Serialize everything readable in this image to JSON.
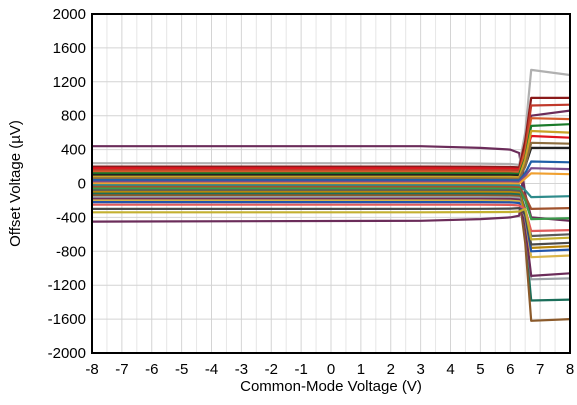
{
  "chart_data": {
    "type": "line",
    "title": "",
    "xlabel": "Common-Mode Voltage (V)",
    "ylabel": "Offset Voltage (µV)",
    "xlim": [
      -8,
      8
    ],
    "ylim": [
      -2000,
      2000
    ],
    "x_ticks": [
      -8,
      -7,
      -6,
      -5,
      -4,
      -3,
      -2,
      -1,
      0,
      1,
      2,
      3,
      4,
      5,
      6,
      7,
      8
    ],
    "y_ticks": [
      -2000,
      -1600,
      -1200,
      -800,
      -400,
      0,
      400,
      800,
      1200,
      1600,
      2000
    ],
    "x_minor_step": 0.5,
    "grid": true,
    "legend": "none",
    "series": [
      {
        "color": "#6b2c5a",
        "values": [
          [
            -8,
            440
          ],
          [
            3,
            440
          ],
          [
            5,
            420
          ],
          [
            6,
            400
          ],
          [
            6.3,
            360
          ],
          [
            6.5,
            -120
          ],
          [
            6.7,
            -400
          ],
          [
            8,
            -440
          ]
        ]
      },
      {
        "color": "#6b2c5a",
        "values": [
          [
            -8,
            -450
          ],
          [
            3,
            -440
          ],
          [
            5,
            -420
          ],
          [
            6,
            -400
          ],
          [
            6.3,
            -380
          ],
          [
            6.5,
            380
          ],
          [
            6.7,
            800
          ],
          [
            8,
            860
          ]
        ]
      },
      {
        "color": "#b0b0b0",
        "values": [
          [
            -8,
            240
          ],
          [
            3,
            240
          ],
          [
            5,
            235
          ],
          [
            6,
            230
          ],
          [
            6.3,
            220
          ],
          [
            6.5,
            600
          ],
          [
            6.7,
            1340
          ],
          [
            8,
            1280
          ]
        ]
      },
      {
        "color": "#8b1a1a",
        "values": [
          [
            -8,
            200
          ],
          [
            3,
            200
          ],
          [
            5,
            198
          ],
          [
            6,
            195
          ],
          [
            6.3,
            190
          ],
          [
            6.5,
            500
          ],
          [
            6.7,
            1010
          ],
          [
            8,
            1010
          ]
        ]
      },
      {
        "color": "#e0141e",
        "values": [
          [
            -8,
            180
          ],
          [
            3,
            180
          ],
          [
            5,
            178
          ],
          [
            6,
            176
          ],
          [
            6.3,
            170
          ],
          [
            6.5,
            300
          ],
          [
            6.7,
            560
          ],
          [
            8,
            540
          ]
        ]
      },
      {
        "color": "#c0392b",
        "values": [
          [
            -8,
            160
          ],
          [
            3,
            160
          ],
          [
            5,
            159
          ],
          [
            6,
            158
          ],
          [
            6.3,
            155
          ],
          [
            6.5,
            400
          ],
          [
            6.7,
            920
          ],
          [
            8,
            930
          ]
        ]
      },
      {
        "color": "#d45a2a",
        "values": [
          [
            -8,
            140
          ],
          [
            3,
            140
          ],
          [
            5,
            139
          ],
          [
            6,
            138
          ],
          [
            6.3,
            130
          ],
          [
            6.5,
            380
          ],
          [
            6.7,
            770
          ],
          [
            8,
            760
          ]
        ]
      },
      {
        "color": "#1a7a2a",
        "values": [
          [
            -8,
            120
          ],
          [
            3,
            120
          ],
          [
            5,
            119
          ],
          [
            6,
            118
          ],
          [
            6.3,
            112
          ],
          [
            6.5,
            300
          ],
          [
            6.7,
            680
          ],
          [
            8,
            700
          ]
        ]
      },
      {
        "color": "#222222",
        "values": [
          [
            -8,
            100
          ],
          [
            3,
            100
          ],
          [
            5,
            99
          ],
          [
            6,
            98
          ],
          [
            6.3,
            95
          ],
          [
            6.5,
            200
          ],
          [
            6.7,
            420
          ],
          [
            8,
            420
          ]
        ]
      },
      {
        "color": "#c9a227",
        "values": [
          [
            -8,
            80
          ],
          [
            3,
            80
          ],
          [
            5,
            79
          ],
          [
            6,
            78
          ],
          [
            6.3,
            74
          ],
          [
            6.5,
            280
          ],
          [
            6.7,
            620
          ],
          [
            8,
            600
          ]
        ]
      },
      {
        "color": "#8c6d3f",
        "values": [
          [
            -8,
            60
          ],
          [
            3,
            60
          ],
          [
            5,
            59
          ],
          [
            6,
            58
          ],
          [
            6.3,
            55
          ],
          [
            6.5,
            200
          ],
          [
            6.7,
            480
          ],
          [
            8,
            470
          ]
        ]
      },
      {
        "color": "#1f5fa8",
        "values": [
          [
            -8,
            40
          ],
          [
            3,
            40
          ],
          [
            5,
            40
          ],
          [
            6,
            39
          ],
          [
            6.3,
            36
          ],
          [
            6.5,
            120
          ],
          [
            6.7,
            260
          ],
          [
            8,
            250
          ]
        ]
      },
      {
        "color": "#7a4b8c",
        "values": [
          [
            -8,
            20
          ],
          [
            3,
            20
          ],
          [
            5,
            20
          ],
          [
            6,
            19
          ],
          [
            6.3,
            18
          ],
          [
            6.5,
            90
          ],
          [
            6.7,
            180
          ],
          [
            8,
            170
          ]
        ]
      },
      {
        "color": "#f0a030",
        "values": [
          [
            -8,
            0
          ],
          [
            3,
            0
          ],
          [
            5,
            0
          ],
          [
            6,
            0
          ],
          [
            6.3,
            -2
          ],
          [
            6.5,
            60
          ],
          [
            6.7,
            120
          ],
          [
            8,
            110
          ]
        ]
      },
      {
        "color": "#2e8b8b",
        "values": [
          [
            -8,
            -20
          ],
          [
            3,
            -20
          ],
          [
            5,
            -20
          ],
          [
            6,
            -21
          ],
          [
            6.3,
            -24
          ],
          [
            6.5,
            -80
          ],
          [
            6.7,
            -160
          ],
          [
            8,
            -150
          ]
        ]
      },
      {
        "color": "#a0522d",
        "values": [
          [
            -8,
            -40
          ],
          [
            3,
            -40
          ],
          [
            5,
            -40
          ],
          [
            6,
            -41
          ],
          [
            6.3,
            -45
          ],
          [
            6.5,
            -150
          ],
          [
            6.7,
            -300
          ],
          [
            8,
            -290
          ]
        ]
      },
      {
        "color": "#3a9a4a",
        "values": [
          [
            -8,
            -60
          ],
          [
            3,
            -60
          ],
          [
            5,
            -60
          ],
          [
            6,
            -61
          ],
          [
            6.3,
            -66
          ],
          [
            6.5,
            -200
          ],
          [
            6.7,
            -420
          ],
          [
            8,
            -410
          ]
        ]
      },
      {
        "color": "#5a5a5a",
        "values": [
          [
            -8,
            -80
          ],
          [
            3,
            -80
          ],
          [
            5,
            -80
          ],
          [
            6,
            -82
          ],
          [
            6.3,
            -88
          ],
          [
            6.5,
            -300
          ],
          [
            6.7,
            -620
          ],
          [
            8,
            -600
          ]
        ]
      },
      {
        "color": "#b8860b",
        "values": [
          [
            -8,
            -100
          ],
          [
            3,
            -100
          ],
          [
            5,
            -100
          ],
          [
            6,
            -102
          ],
          [
            6.3,
            -110
          ],
          [
            6.5,
            -350
          ],
          [
            6.7,
            -760
          ],
          [
            8,
            -740
          ]
        ]
      },
      {
        "color": "#1b6e5a",
        "values": [
          [
            -8,
            -120
          ],
          [
            3,
            -120
          ],
          [
            5,
            -120
          ],
          [
            6,
            -122
          ],
          [
            6.3,
            -130
          ],
          [
            6.5,
            -600
          ],
          [
            6.7,
            -1380
          ],
          [
            8,
            -1370
          ]
        ]
      },
      {
        "color": "#8b5a2b",
        "values": [
          [
            -8,
            -140
          ],
          [
            3,
            -140
          ],
          [
            5,
            -140
          ],
          [
            6,
            -143
          ],
          [
            6.3,
            -150
          ],
          [
            6.5,
            -700
          ],
          [
            6.7,
            -1620
          ],
          [
            8,
            -1600
          ]
        ]
      },
      {
        "color": "#9aa0a6",
        "values": [
          [
            -8,
            -160
          ],
          [
            3,
            -160
          ],
          [
            5,
            -160
          ],
          [
            6,
            -163
          ],
          [
            6.3,
            -170
          ],
          [
            6.5,
            -500
          ],
          [
            6.7,
            -1130
          ],
          [
            8,
            -1120
          ]
        ]
      },
      {
        "color": "#6b2c5a",
        "values": [
          [
            -8,
            -180
          ],
          [
            3,
            -180
          ],
          [
            5,
            -180
          ],
          [
            6,
            -183
          ],
          [
            6.3,
            -190
          ],
          [
            6.5,
            -500
          ],
          [
            6.7,
            -1090
          ],
          [
            8,
            -1060
          ]
        ]
      },
      {
        "color": "#d9b44a",
        "values": [
          [
            -8,
            -200
          ],
          [
            3,
            -200
          ],
          [
            5,
            -200
          ],
          [
            6,
            -203
          ],
          [
            6.3,
            -210
          ],
          [
            6.5,
            -400
          ],
          [
            6.7,
            -870
          ],
          [
            8,
            -850
          ]
        ]
      },
      {
        "color": "#2255aa",
        "values": [
          [
            -8,
            -220
          ],
          [
            3,
            -220
          ],
          [
            5,
            -220
          ],
          [
            6,
            -222
          ],
          [
            6.3,
            -230
          ],
          [
            6.5,
            -380
          ],
          [
            6.7,
            -800
          ],
          [
            8,
            -780
          ]
        ]
      },
      {
        "color": "#e05a5a",
        "values": [
          [
            -8,
            -250
          ],
          [
            3,
            -250
          ],
          [
            5,
            -250
          ],
          [
            6,
            -252
          ],
          [
            6.3,
            -260
          ],
          [
            6.5,
            -300
          ],
          [
            6.7,
            -560
          ],
          [
            8,
            -550
          ]
        ]
      },
      {
        "color": "#4a4a4a",
        "values": [
          [
            -8,
            -300
          ],
          [
            3,
            -300
          ],
          [
            5,
            -298
          ],
          [
            6,
            -296
          ],
          [
            6.3,
            -290
          ],
          [
            6.5,
            -360
          ],
          [
            6.7,
            -720
          ],
          [
            8,
            -700
          ]
        ]
      },
      {
        "color": "#c4b030",
        "values": [
          [
            -8,
            -340
          ],
          [
            3,
            -340
          ],
          [
            5,
            -338
          ],
          [
            6,
            -336
          ],
          [
            6.3,
            -330
          ],
          [
            6.5,
            -300
          ],
          [
            6.7,
            -660
          ],
          [
            8,
            -640
          ]
        ]
      }
    ]
  }
}
